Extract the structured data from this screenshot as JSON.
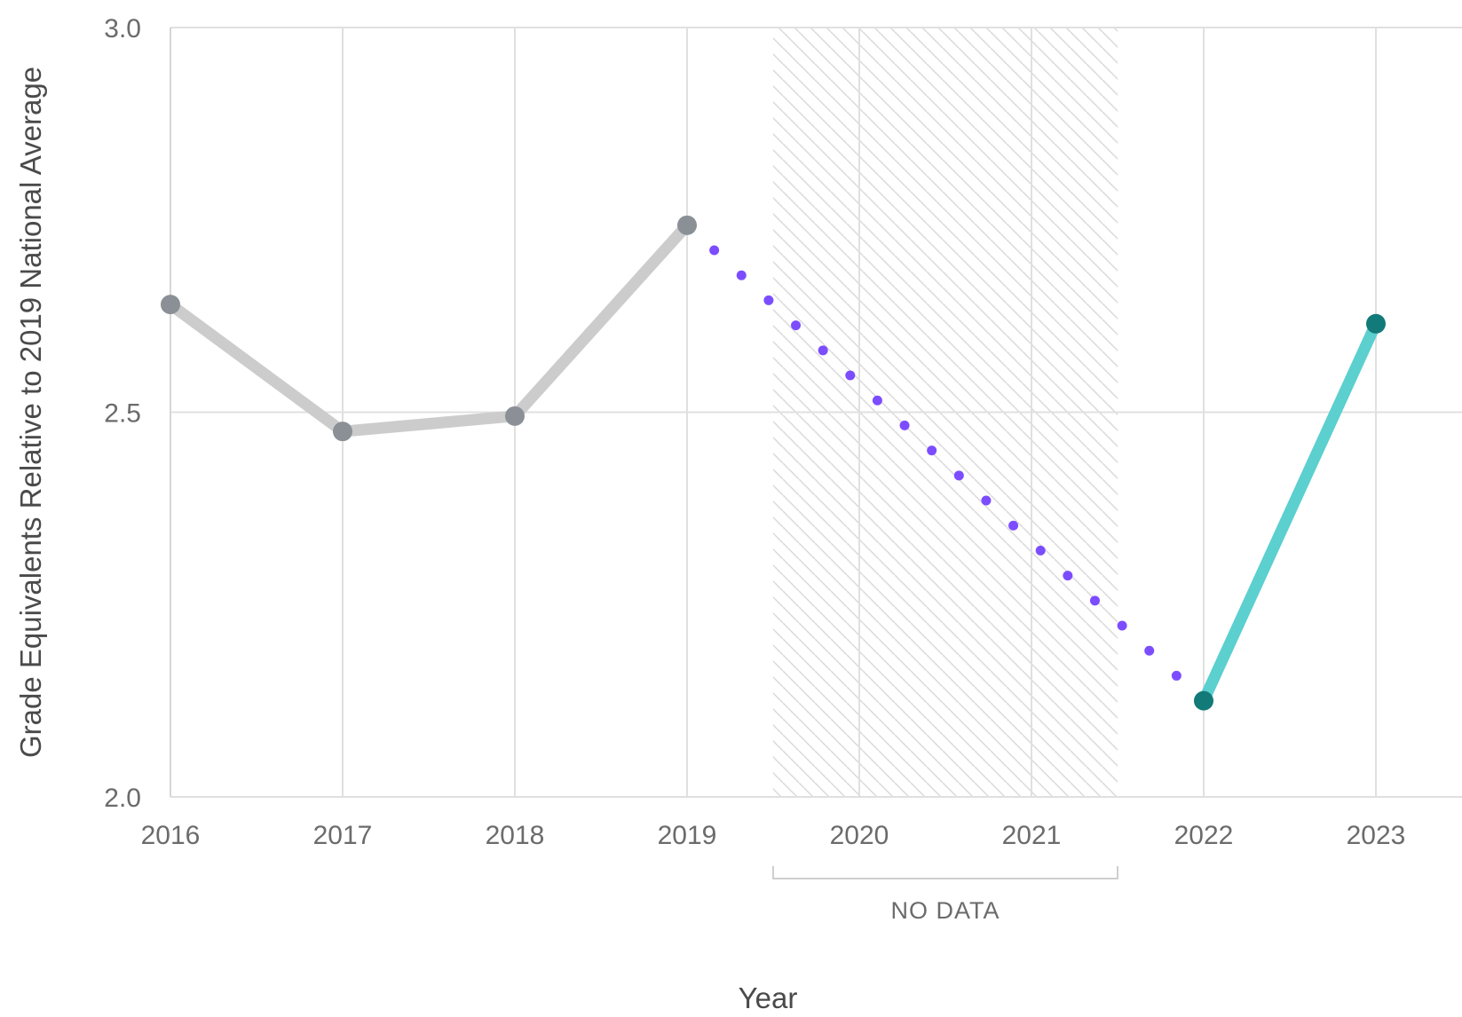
{
  "chart_data": {
    "type": "line",
    "xlabel": "Year",
    "ylabel": "Grade Equivalents Relative to 2019 National Average",
    "xlim": [
      2016,
      2023.5
    ],
    "ylim": [
      2.0,
      3.0
    ],
    "x_ticks": [
      2016,
      2017,
      2018,
      2019,
      2020,
      2021,
      2022,
      2023
    ],
    "y_ticks": [
      "2.0",
      "2.5",
      "3.0"
    ],
    "grid": true,
    "no_data_band": {
      "from": 2019.5,
      "to": 2021.5,
      "label": "NO DATA"
    },
    "series": [
      {
        "style": "solid",
        "color": "#cccccc",
        "marker_color": "#8a9096",
        "x": [
          2016,
          2017,
          2018,
          2019
        ],
        "y": [
          2.64,
          2.475,
          2.495,
          2.743
        ]
      },
      {
        "style": "dotted",
        "color": "#7c4dff",
        "x": [
          2019,
          2022
        ],
        "y": [
          2.743,
          2.125
        ]
      },
      {
        "style": "solid",
        "color": "#5ccfcf",
        "marker_color": "#127a78",
        "x": [
          2022,
          2023
        ],
        "y": [
          2.125,
          2.615
        ]
      }
    ]
  }
}
